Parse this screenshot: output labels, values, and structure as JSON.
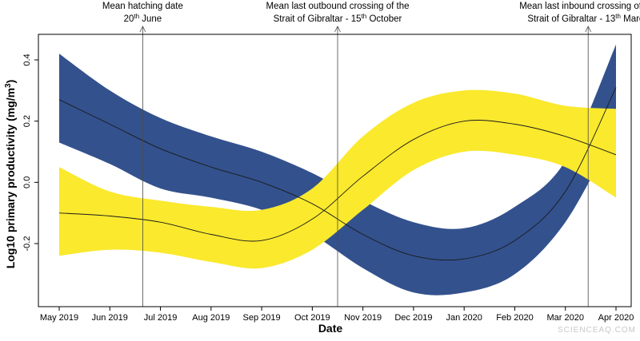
{
  "chart_data": {
    "type": "line",
    "title": "",
    "xlabel": "Date",
    "ylabel": "Log10 primary productivity (mg/m³)",
    "ylabel_parts": {
      "before": "Log10 primary productivity (mg/m",
      "sup": "3",
      "after": ")"
    },
    "xlim": [
      0,
      11
    ],
    "ylim": [
      -0.4,
      0.45
    ],
    "grid": false,
    "x_ticks": [
      {
        "value": 0,
        "label": "May 2019"
      },
      {
        "value": 1,
        "label": "Jun 2019"
      },
      {
        "value": 2,
        "label": "Jul 2019"
      },
      {
        "value": 3,
        "label": "Aug 2019"
      },
      {
        "value": 4,
        "label": "Sep 2019"
      },
      {
        "value": 5,
        "label": "Oct 2019"
      },
      {
        "value": 6,
        "label": "Nov 2019"
      },
      {
        "value": 7,
        "label": "Dec 2019"
      },
      {
        "value": 8,
        "label": "Jan 2020"
      },
      {
        "value": 9,
        "label": "Feb 2020"
      },
      {
        "value": 10,
        "label": "Mar 2020"
      },
      {
        "value": 11,
        "label": "Apr 2020"
      }
    ],
    "y_ticks": [
      {
        "value": -0.2,
        "label": "-0.2"
      },
      {
        "value": 0.0,
        "label": "0.0"
      },
      {
        "value": 0.2,
        "label": "0.2"
      },
      {
        "value": 0.4,
        "label": "0.4"
      }
    ],
    "series": [
      {
        "name": "Blue band",
        "color": "#33518d",
        "x": [
          0,
          1,
          2,
          3,
          4,
          5,
          6,
          7,
          8,
          9,
          10,
          11
        ],
        "y": [
          0.27,
          0.19,
          0.11,
          0.05,
          0.0,
          -0.07,
          -0.17,
          -0.24,
          -0.25,
          -0.19,
          -0.03,
          0.31
        ],
        "lower": [
          0.13,
          0.06,
          -0.02,
          -0.05,
          -0.09,
          -0.17,
          -0.28,
          -0.36,
          -0.36,
          -0.3,
          -0.13,
          0.17
        ],
        "upper": [
          0.42,
          0.3,
          0.21,
          0.15,
          0.1,
          0.03,
          -0.06,
          -0.13,
          -0.15,
          -0.08,
          0.07,
          0.45
        ]
      },
      {
        "name": "Yellow band",
        "color": "#fae92d",
        "x": [
          0,
          1,
          2,
          3,
          4,
          5,
          6,
          7,
          8,
          9,
          10,
          11
        ],
        "y": [
          -0.1,
          -0.11,
          -0.13,
          -0.17,
          -0.19,
          -0.12,
          0.02,
          0.14,
          0.2,
          0.19,
          0.15,
          0.09
        ],
        "lower": [
          -0.24,
          -0.22,
          -0.23,
          -0.26,
          -0.28,
          -0.22,
          -0.09,
          0.04,
          0.1,
          0.09,
          0.05,
          -0.05
        ],
        "upper": [
          0.05,
          -0.03,
          -0.06,
          -0.08,
          -0.09,
          -0.02,
          0.15,
          0.26,
          0.3,
          0.29,
          0.25,
          0.24
        ]
      }
    ],
    "annotations": [
      {
        "x": 1.65,
        "line1": "Mean hatching date",
        "line2_main": "20",
        "line2_sup": "th",
        "line2_rest": " June"
      },
      {
        "x": 5.5,
        "line1": "Mean last outbound crossing of the",
        "line2_main": "Strait of Gibraltar - 15",
        "line2_sup": "th",
        "line2_rest": " October"
      },
      {
        "x": 10.45,
        "line1": "Mean last inbound crossing of the",
        "line2_main": "Strait of Gibraltar - 13",
        "line2_sup": "th",
        "line2_rest": " March"
      }
    ]
  },
  "watermark": "SCIENCEAQ.COM"
}
